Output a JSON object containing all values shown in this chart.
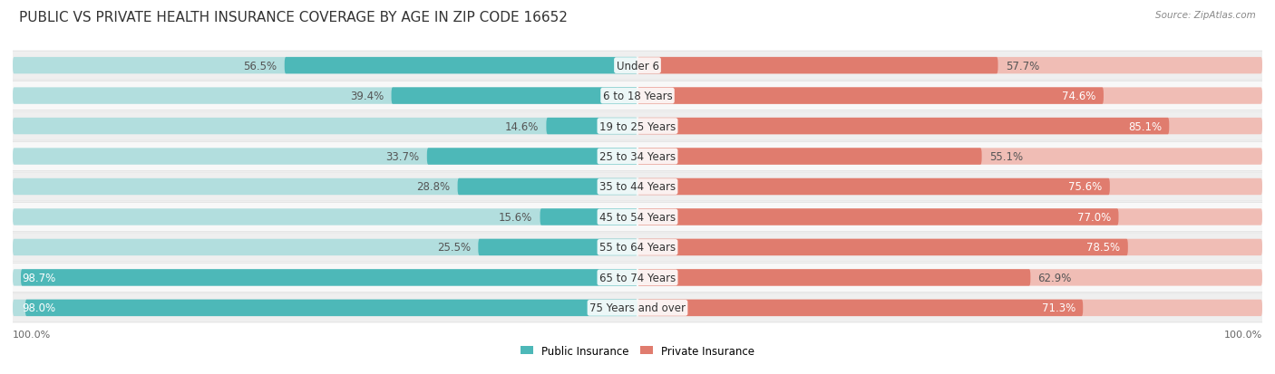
{
  "title": "Public vs Private Health Insurance Coverage by Age in Zip Code 16652",
  "source": "Source: ZipAtlas.com",
  "categories": [
    "Under 6",
    "6 to 18 Years",
    "19 to 25 Years",
    "25 to 34 Years",
    "35 to 44 Years",
    "45 to 54 Years",
    "55 to 64 Years",
    "65 to 74 Years",
    "75 Years and over"
  ],
  "public_values": [
    56.5,
    39.4,
    14.6,
    33.7,
    28.8,
    15.6,
    25.5,
    98.7,
    98.0
  ],
  "private_values": [
    57.7,
    74.6,
    85.1,
    55.1,
    75.6,
    77.0,
    78.5,
    62.9,
    71.3
  ],
  "public_color": "#4db8b8",
  "private_color": "#e07c6e",
  "public_color_light": "#b2dede",
  "private_color_light": "#f0bdb5",
  "row_bg_even": "#efefef",
  "row_bg_odd": "#f8f8f8",
  "title_fontsize": 11,
  "label_fontsize": 8.5,
  "value_fontsize": 8.5,
  "axis_label_fontsize": 8,
  "legend_fontsize": 8.5,
  "background_color": "#ffffff",
  "max_value": 100.0,
  "pub_label_inside_threshold": 60,
  "priv_label_inside_threshold": 65
}
